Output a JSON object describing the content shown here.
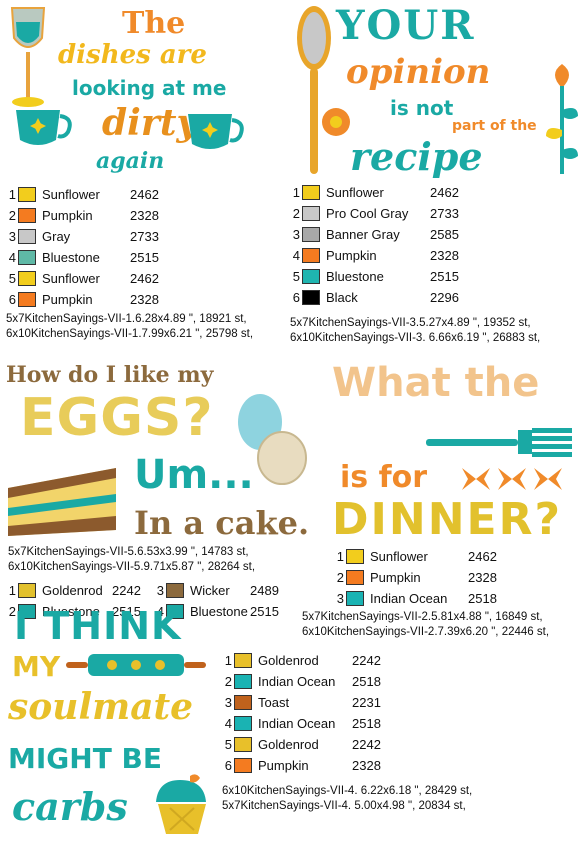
{
  "design1": {
    "lines": [
      "The",
      "dishes are",
      "looking at me",
      "dirty",
      "again"
    ],
    "colors": [
      {
        "num": "1",
        "name": "Sunflower",
        "code": "2462",
        "hex": "#f2cd1d"
      },
      {
        "num": "2",
        "name": "Pumpkin",
        "code": "2328",
        "hex": "#f47b20"
      },
      {
        "num": "3",
        "name": "Gray",
        "code": "2733",
        "hex": "#c8c8c8"
      },
      {
        "num": "4",
        "name": "Bluestone",
        "code": "2515",
        "hex": "#5fb9a6"
      },
      {
        "num": "5",
        "name": "Sunflower",
        "code": "2462",
        "hex": "#f2cd1d"
      },
      {
        "num": "6",
        "name": "Pumpkin",
        "code": "2328",
        "hex": "#f47b20"
      }
    ],
    "specs": [
      "5x7KitchenSayings-VII-1.6.28x4.89 \", 18921 st,",
      "6x10KitchenSayings-VII-1.7.99x6.21 \", 25798 st,"
    ]
  },
  "design2": {
    "lines": [
      "YOUR",
      "opinion",
      "is not",
      "part of the",
      "recipe"
    ],
    "colors": [
      {
        "num": "1",
        "name": "Sunflower",
        "code": "2462",
        "hex": "#f2cd1d"
      },
      {
        "num": "2",
        "name": "Pro Cool Gray",
        "code": "2733",
        "hex": "#c8c8c8"
      },
      {
        "num": "3",
        "name": "Banner Gray",
        "code": "2585",
        "hex": "#a8a8a8"
      },
      {
        "num": "4",
        "name": "Pumpkin",
        "code": "2328",
        "hex": "#f47b20"
      },
      {
        "num": "5",
        "name": "Bluestone",
        "code": "2515",
        "hex": "#1fb5b0"
      },
      {
        "num": "6",
        "name": "Black",
        "code": "2296",
        "hex": "#000000"
      }
    ],
    "specs": [
      "5x7KitchenSayings-VII-3.5.27x4.89 \", 19352 st,",
      "6x10KitchenSayings-VII-3. 6.66x6.19 \", 26883 st,"
    ]
  },
  "design3": {
    "lines": [
      "How do I like my",
      "EGGS?",
      "Um...",
      "In a cake."
    ],
    "specs": [
      "5x7KitchenSayings-VII-5.6.53x3.99 \", 14783 st,",
      "6x10KitchenSayings-VII-5.9.71x5.87 \", 28264 st,"
    ],
    "colors_left": [
      {
        "num": "1",
        "name": "Goldenrod",
        "code": "2242",
        "hex": "#e2c12d"
      },
      {
        "num": "2",
        "name": "Bluestone",
        "code": "2515",
        "hex": "#1aa9a4"
      }
    ],
    "colors_right": [
      {
        "num": "3",
        "name": "Wicker",
        "code": "2489",
        "hex": "#8c6a3d"
      },
      {
        "num": "4",
        "name": "Bluestone",
        "code": "2515",
        "hex": "#1aa9a4"
      }
    ]
  },
  "design4": {
    "lines": [
      "What the",
      "is for",
      "DINNER?"
    ],
    "colors": [
      {
        "num": "1",
        "name": "Sunflower",
        "code": "2462",
        "hex": "#f2cd1d"
      },
      {
        "num": "2",
        "name": "Pumpkin",
        "code": "2328",
        "hex": "#f47b20"
      },
      {
        "num": "3",
        "name": "Indian Ocean",
        "code": "2518",
        "hex": "#1ab3b3"
      }
    ],
    "specs": [
      "5x7KitchenSayings-VII-2.5.81x4.88 \", 16849 st,",
      "6x10KitchenSayings-VII-2.7.39x6.20 \", 22446 st,"
    ]
  },
  "design5": {
    "lines": [
      "I THINK",
      "MY",
      "soulmate",
      "MIGHT BE",
      "carbs"
    ],
    "colors": [
      {
        "num": "1",
        "name": "Goldenrod",
        "code": "2242",
        "hex": "#e8c02a"
      },
      {
        "num": "2",
        "name": "Indian Ocean",
        "code": "2518",
        "hex": "#1ab3b3"
      },
      {
        "num": "3",
        "name": "Toast",
        "code": "2231",
        "hex": "#c0621c"
      },
      {
        "num": "4",
        "name": "Indian Ocean",
        "code": "2518",
        "hex": "#1ab3b3"
      },
      {
        "num": "5",
        "name": "Goldenrod",
        "code": "2242",
        "hex": "#e8c02a"
      },
      {
        "num": "6",
        "name": "Pumpkin",
        "code": "2328",
        "hex": "#f47b20"
      }
    ],
    "specs": [
      "6x10KitchenSayings-VII-4. 6.22x6.18 \", 28429 st,",
      "5x7KitchenSayings-VII-4. 5.00x4.98 \", 20834 st,"
    ]
  }
}
